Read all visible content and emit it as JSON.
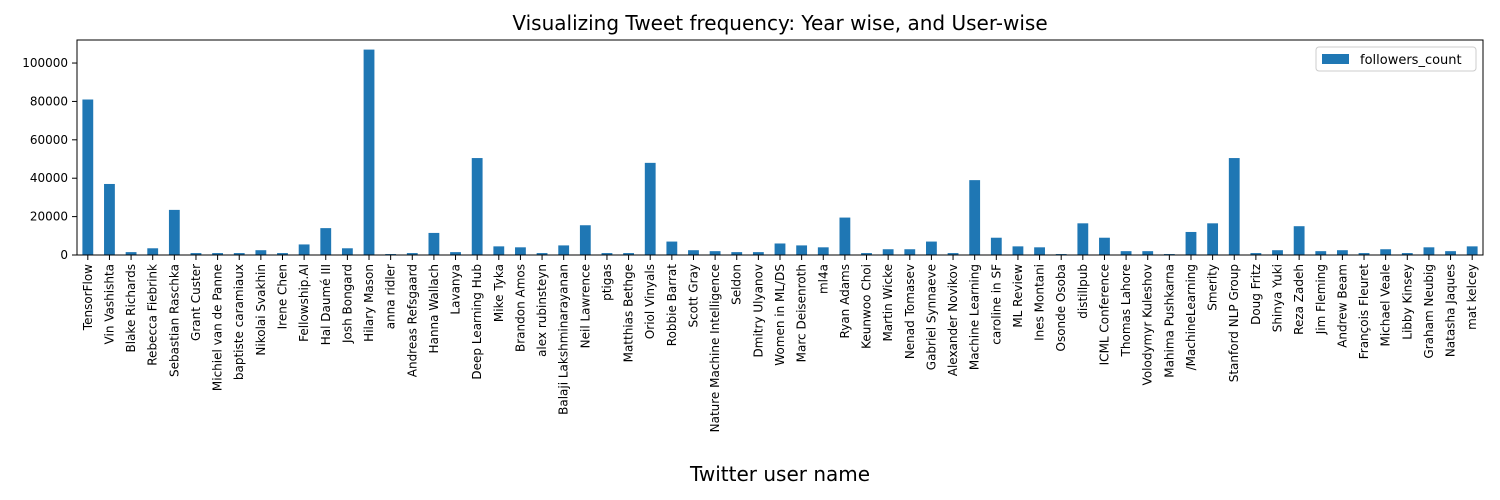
{
  "chart_data": {
    "type": "bar",
    "title": "Visualizing Tweet frequency: Year wise, and User-wise",
    "xlabel": "Twitter user name",
    "ylabel": "",
    "ylim": [
      0,
      112000
    ],
    "yticks": [
      0,
      20000,
      40000,
      60000,
      80000,
      100000
    ],
    "grid": false,
    "legend_position": "top-right",
    "bar_color": "#1f77b4",
    "series": [
      {
        "name": "followers_count",
        "values": [
          81000,
          37000,
          1500,
          3500,
          23500,
          1000,
          1000,
          1000,
          2500,
          1000,
          5500,
          14000,
          3500,
          107000,
          500,
          1000,
          11500,
          1500,
          50500,
          4500,
          4000,
          1000,
          5000,
          15500,
          1000,
          1000,
          48000,
          7000,
          2500,
          2000,
          1500,
          1500,
          6000,
          5000,
          4000,
          19500,
          1000,
          3000,
          3000,
          7000,
          1000,
          39000,
          9000,
          4500,
          4000,
          500,
          16500,
          9000,
          2000,
          2000,
          500,
          12000,
          16500,
          50500,
          1000,
          2500,
          15000,
          2000,
          2500,
          1000,
          3000,
          1000,
          4000,
          2000,
          4500
        ]
      }
    ],
    "categories": [
      "TensorFlow",
      "Vin Vashishta",
      "Blake Richards",
      "Rebecca Fiebrink",
      "Sebastian Raschka",
      "Grant Custer",
      "Michiel van de Panne",
      "baptiste caramiaux",
      "Nikolai Svakhin ",
      "Irene Chen",
      "Fellowship.AI",
      "Hal Daumé III",
      "Josh Bongard",
      "Hilary Mason",
      "anna ridler",
      "Andreas Refsgaard",
      "Hanna Wallach",
      "Lavanya",
      "Deep Learning Hub",
      "Mike Tyka",
      "Brandon Amos",
      "alex rubinsteyn",
      "Balaji Lakshminarayanan",
      "Neil Lawrence",
      "ptigas",
      "Matthias Bethge",
      "Oriol Vinyals",
      "Robbie Barrat",
      "Scott Gray",
      "Nature Machine Intelligence",
      "Seldon",
      "Dmitry Ulyanov",
      "Women in ML/DS",
      "Marc Deisenroth",
      "ml4a",
      "Ryan Adams",
      "Keunwoo Choi",
      "Martin Wicke",
      "Nenad Tomasev",
      "Gabriel Synnaeve ",
      "Alexander Novikov",
      "Machine Learning",
      "caroline in SF",
      "ML Review",
      "Ines Montani ",
      "Osonde Osoba",
      "distillpub",
      "ICML Conference",
      "Thomas Lahore",
      "Volodymyr Kuleshov",
      "Mahima Pushkarna",
      "/MachineLearning",
      "Smerity",
      "Stanford NLP Group",
      "Doug Fritz",
      "Shinya Yuki",
      "Reza Zadeh",
      "Jim Fleming",
      "Andrew Beam",
      "François Fleuret",
      "Michael Veale",
      "Libby Kinsey",
      "Graham Neubig",
      "Natasha Jaques",
      "mat kelcey"
    ]
  }
}
